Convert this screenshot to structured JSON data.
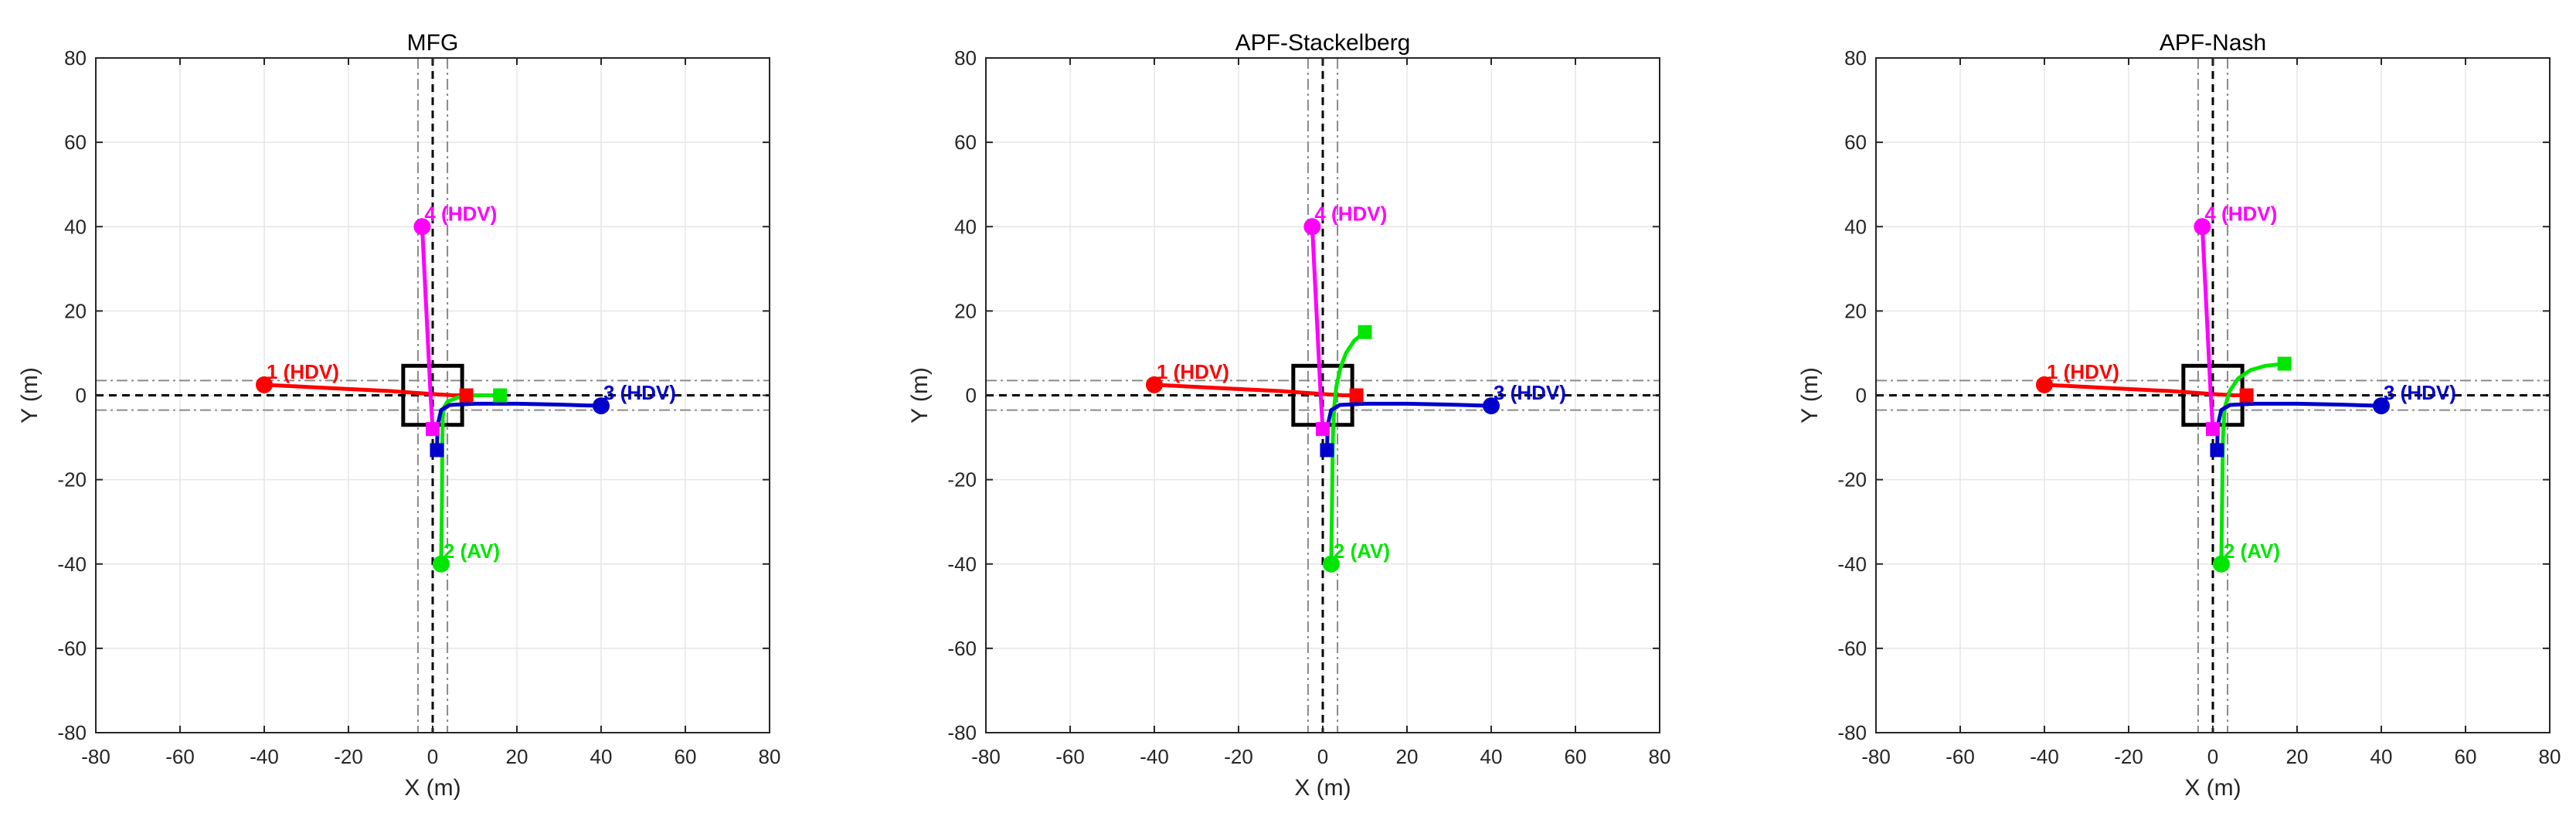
{
  "chart_data": [
    {
      "type": "line",
      "title": "MFG",
      "xlabel": "X (m)",
      "ylabel": "Y (m)",
      "xlim": [
        -80,
        80
      ],
      "ylim": [
        -80,
        80
      ],
      "xticks": [
        -80,
        -60,
        -40,
        -20,
        0,
        20,
        40,
        60,
        80
      ],
      "yticks": [
        -80,
        -60,
        -40,
        -20,
        0,
        20,
        40,
        60,
        80
      ],
      "grid": true,
      "intersection_box": {
        "x0": -7,
        "x1": 7,
        "y0": -7,
        "y1": 7
      },
      "series": [
        {
          "name": "1 (HDV)",
          "color": "#ff0000",
          "x": [
            -40,
            -30,
            -20,
            -10,
            0,
            5,
            8
          ],
          "y": [
            2.5,
            2,
            1.5,
            1,
            0.3,
            0,
            0
          ],
          "start": [
            -40,
            2.5
          ],
          "end": [
            8,
            0
          ]
        },
        {
          "name": "2 (AV)",
          "color": "#00e600",
          "x": [
            2,
            2.2,
            2.3,
            2.4,
            2.6,
            3.5,
            6,
            10,
            16
          ],
          "y": [
            -40,
            -25,
            -10,
            -5,
            -3,
            -1.5,
            -0.5,
            0,
            0
          ],
          "start": [
            2,
            -40
          ],
          "end": [
            16,
            0
          ]
        },
        {
          "name": "3 (HDV)",
          "color": "#0000cc",
          "x": [
            40,
            30,
            20,
            10,
            4,
            2,
            1.2,
            1
          ],
          "y": [
            -2.5,
            -2.2,
            -2,
            -2,
            -2.3,
            -3.5,
            -7,
            -13
          ],
          "start": [
            40,
            -2.5
          ],
          "end": [
            1,
            -13
          ]
        },
        {
          "name": "4 (HDV)",
          "color": "#ff00ff",
          "x": [
            -2.5,
            -2,
            -1.5,
            -1,
            -0.5,
            0
          ],
          "y": [
            40,
            30,
            20,
            10,
            0,
            -8
          ],
          "start": [
            -2.5,
            40
          ],
          "end": [
            0,
            -8
          ]
        }
      ]
    },
    {
      "type": "line",
      "title": "APF-Stackelberg",
      "xlabel": "X (m)",
      "ylabel": "Y (m)",
      "xlim": [
        -80,
        80
      ],
      "ylim": [
        -80,
        80
      ],
      "xticks": [
        -80,
        -60,
        -40,
        -20,
        0,
        20,
        40,
        60,
        80
      ],
      "yticks": [
        -80,
        -60,
        -40,
        -20,
        0,
        20,
        40,
        60,
        80
      ],
      "grid": true,
      "intersection_box": {
        "x0": -7,
        "x1": 7,
        "y0": -7,
        "y1": 7
      },
      "series": [
        {
          "name": "1 (HDV)",
          "color": "#ff0000",
          "x": [
            -40,
            -30,
            -20,
            -10,
            0,
            5,
            8
          ],
          "y": [
            2.5,
            2,
            1.5,
            1,
            0.3,
            0,
            0
          ],
          "start": [
            -40,
            2.5
          ],
          "end": [
            8,
            0
          ]
        },
        {
          "name": "2 (AV)",
          "color": "#00e600",
          "x": [
            2,
            2.2,
            2.4,
            2.7,
            3.2,
            4.2,
            5.5,
            7.5,
            10
          ],
          "y": [
            -40,
            -25,
            -10,
            -3,
            2,
            6.5,
            10,
            13,
            15
          ],
          "start": [
            2,
            -40
          ],
          "end": [
            10,
            15
          ]
        },
        {
          "name": "3 (HDV)",
          "color": "#0000cc",
          "x": [
            40,
            30,
            20,
            10,
            4,
            2,
            1.2,
            1
          ],
          "y": [
            -2.5,
            -2.2,
            -2,
            -2,
            -2.3,
            -3.5,
            -7,
            -13
          ],
          "start": [
            40,
            -2.5
          ],
          "end": [
            1,
            -13
          ]
        },
        {
          "name": "4 (HDV)",
          "color": "#ff00ff",
          "x": [
            -2.5,
            -2,
            -1.5,
            -1,
            -0.5,
            0
          ],
          "y": [
            40,
            30,
            20,
            10,
            0,
            -8
          ],
          "start": [
            -2.5,
            40
          ],
          "end": [
            0,
            -8
          ]
        }
      ]
    },
    {
      "type": "line",
      "title": "APF-Nash",
      "xlabel": "X (m)",
      "ylabel": "Y (m)",
      "xlim": [
        -80,
        80
      ],
      "ylim": [
        -80,
        80
      ],
      "xticks": [
        -80,
        -60,
        -40,
        -20,
        0,
        20,
        40,
        60,
        80
      ],
      "yticks": [
        -80,
        -60,
        -40,
        -20,
        0,
        20,
        40,
        60,
        80
      ],
      "grid": true,
      "intersection_box": {
        "x0": -7,
        "x1": 7,
        "y0": -7,
        "y1": 7
      },
      "series": [
        {
          "name": "1 (HDV)",
          "color": "#ff0000",
          "x": [
            -40,
            -30,
            -20,
            -10,
            0,
            5,
            8
          ],
          "y": [
            2.5,
            2,
            1.5,
            1,
            0.3,
            0,
            0
          ],
          "start": [
            -40,
            2.5
          ],
          "end": [
            8,
            0
          ]
        },
        {
          "name": "2 (AV)",
          "color": "#00e600",
          "x": [
            2,
            2.2,
            2.4,
            2.8,
            4,
            6,
            9,
            12.5,
            17
          ],
          "y": [
            -40,
            -25,
            -10,
            -3,
            1,
            4,
            6,
            7,
            7.5
          ],
          "start": [
            2,
            -40
          ],
          "end": [
            17,
            7.5
          ]
        },
        {
          "name": "3 (HDV)",
          "color": "#0000cc",
          "x": [
            40,
            30,
            20,
            10,
            4,
            2,
            1.2,
            1
          ],
          "y": [
            -2.5,
            -2.2,
            -2,
            -2,
            -2.3,
            -3.5,
            -7,
            -13
          ],
          "start": [
            40,
            -2.5
          ],
          "end": [
            1,
            -13
          ]
        },
        {
          "name": "4 (HDV)",
          "color": "#ff00ff",
          "x": [
            -2.5,
            -2,
            -1.5,
            -1,
            -0.5,
            0
          ],
          "y": [
            40,
            30,
            20,
            10,
            0,
            -8
          ],
          "start": [
            -2.5,
            40
          ],
          "end": [
            0,
            -8
          ]
        }
      ]
    }
  ]
}
